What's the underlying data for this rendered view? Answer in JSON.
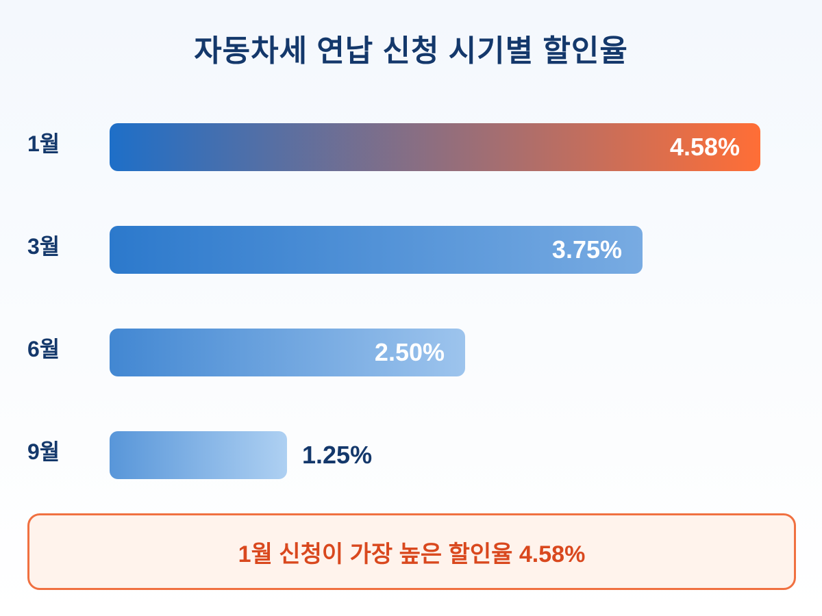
{
  "chart_data": {
    "type": "bar",
    "orientation": "horizontal",
    "title": "자동차세 연납 신청 시기별 할인율",
    "categories": [
      "1월",
      "3월",
      "6월",
      "9월"
    ],
    "values": [
      4.58,
      3.75,
      2.5,
      1.25
    ],
    "value_labels": [
      "4.58%",
      "3.75%",
      "2.50%",
      "1.25%"
    ],
    "unit": "%",
    "xlim": [
      0,
      4.58
    ],
    "grid": false,
    "legend": "none",
    "highlight_index": 0
  },
  "callout": {
    "text": "1월 신청이 가장 높은 할인율 4.58%"
  },
  "colors": {
    "title": "#14386b",
    "highlight_start": "#1e6fc8",
    "highlight_end": "#ff6e36",
    "bar_dark": "#1e6fc8",
    "bar_light": "#aed0f2",
    "callout_border": "#f07040",
    "callout_bg": "#fff3ec",
    "callout_text": "#d9481e"
  }
}
